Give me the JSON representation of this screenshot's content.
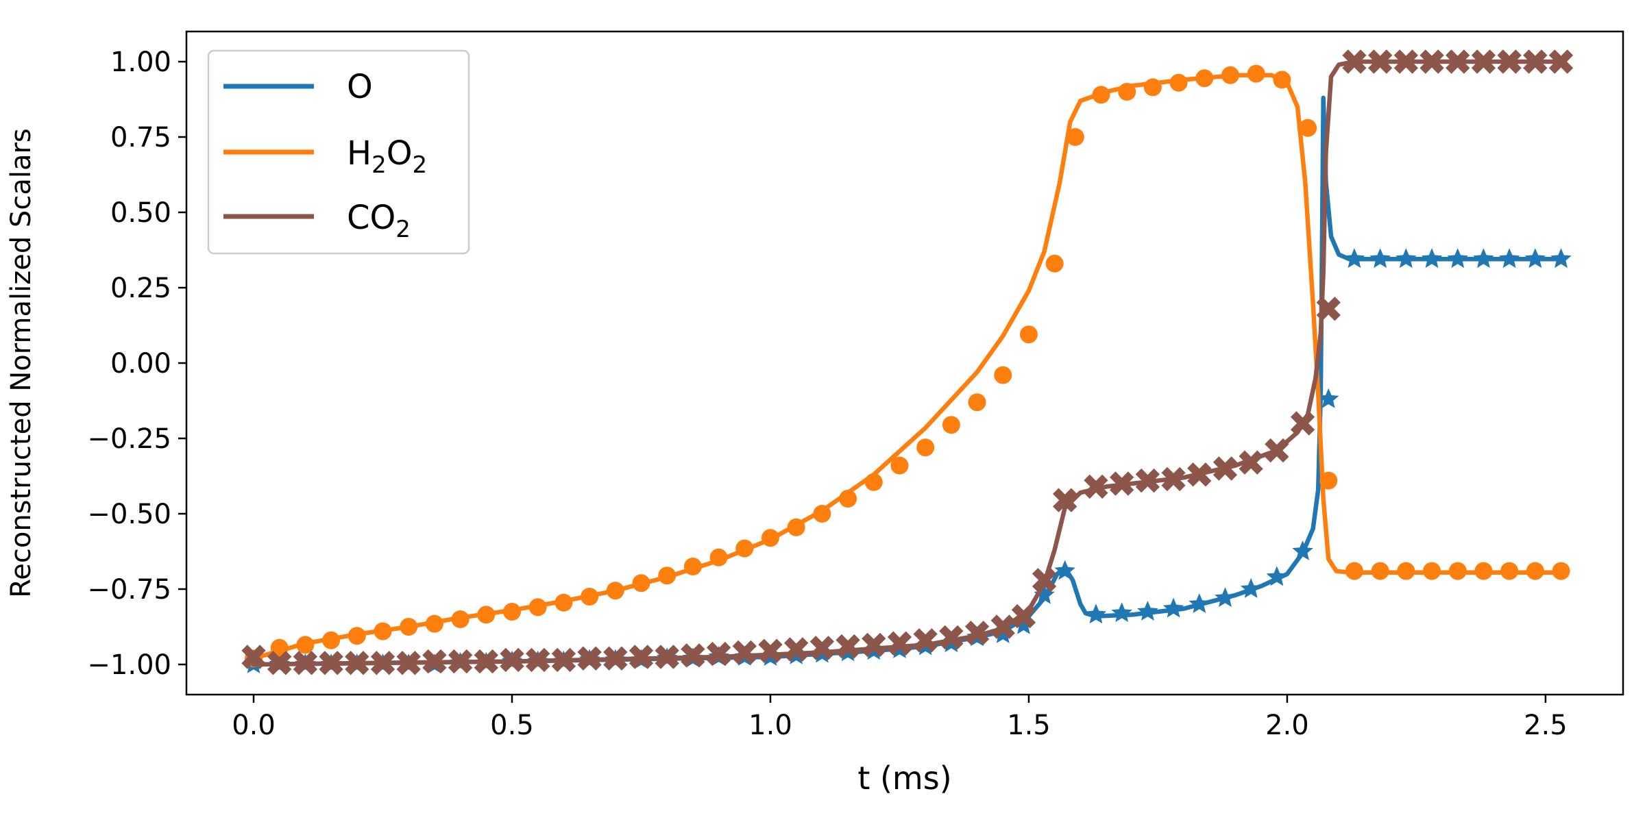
{
  "chart_data": {
    "type": "line",
    "title": "",
    "xlabel": "t (ms)",
    "ylabel": "Reconstructed Normalized Scalars",
    "xlim": [
      -0.13,
      2.65
    ],
    "ylim": [
      -1.1,
      1.1
    ],
    "xticks": [
      0.0,
      0.5,
      1.0,
      1.5,
      2.0,
      2.5
    ],
    "xtick_labels": [
      "0.0",
      "0.5",
      "1.0",
      "1.5",
      "2.0",
      "2.5"
    ],
    "yticks": [
      1.0,
      0.75,
      0.5,
      0.25,
      0.0,
      -0.25,
      -0.5,
      -0.75,
      -1.0
    ],
    "ytick_labels": [
      "1.00",
      "0.75",
      "0.50",
      "0.25",
      "0.00",
      "−0.25",
      "−0.50",
      "−0.75",
      "−1.00"
    ],
    "grid": false,
    "legend_location": "upper-left",
    "series": [
      {
        "name": "O",
        "legend_main": "O",
        "color": "#1f77b4",
        "marker": "star",
        "line": [
          [
            0,
            -1.0
          ],
          [
            0.5,
            -0.99
          ],
          [
            1.0,
            -0.975
          ],
          [
            1.2,
            -0.955
          ],
          [
            1.3,
            -0.94
          ],
          [
            1.4,
            -0.91
          ],
          [
            1.45,
            -0.89
          ],
          [
            1.5,
            -0.84
          ],
          [
            1.53,
            -0.78
          ],
          [
            1.555,
            -0.7
          ],
          [
            1.57,
            -0.68
          ],
          [
            1.585,
            -0.72
          ],
          [
            1.6,
            -0.8
          ],
          [
            1.61,
            -0.83
          ],
          [
            1.63,
            -0.84
          ],
          [
            1.7,
            -0.835
          ],
          [
            1.8,
            -0.815
          ],
          [
            1.9,
            -0.77
          ],
          [
            1.95,
            -0.74
          ],
          [
            2.0,
            -0.7
          ],
          [
            2.03,
            -0.63
          ],
          [
            2.05,
            -0.55
          ],
          [
            2.06,
            -0.42
          ],
          [
            2.065,
            -0.1
          ],
          [
            2.07,
            0.88
          ],
          [
            2.075,
            0.6
          ],
          [
            2.085,
            0.42
          ],
          [
            2.1,
            0.36
          ],
          [
            2.12,
            0.345
          ],
          [
            2.2,
            0.345
          ],
          [
            2.53,
            0.345
          ]
        ],
        "markers": [
          [
            0,
            -1.0
          ],
          [
            0.05,
            -1.0
          ],
          [
            0.1,
            -1.0
          ],
          [
            0.15,
            -1.0
          ],
          [
            0.2,
            -1.0
          ],
          [
            0.25,
            -1.0
          ],
          [
            0.3,
            -1.0
          ],
          [
            0.35,
            -1.0
          ],
          [
            0.4,
            -0.995
          ],
          [
            0.45,
            -0.995
          ],
          [
            0.5,
            -0.99
          ],
          [
            0.55,
            -0.99
          ],
          [
            0.6,
            -0.99
          ],
          [
            0.65,
            -0.985
          ],
          [
            0.7,
            -0.985
          ],
          [
            0.75,
            -0.985
          ],
          [
            0.8,
            -0.98
          ],
          [
            0.85,
            -0.98
          ],
          [
            0.9,
            -0.975
          ],
          [
            0.95,
            -0.975
          ],
          [
            1.0,
            -0.975
          ],
          [
            1.05,
            -0.97
          ],
          [
            1.1,
            -0.965
          ],
          [
            1.15,
            -0.96
          ],
          [
            1.2,
            -0.955
          ],
          [
            1.25,
            -0.95
          ],
          [
            1.3,
            -0.94
          ],
          [
            1.35,
            -0.93
          ],
          [
            1.4,
            -0.91
          ],
          [
            1.45,
            -0.9
          ],
          [
            1.49,
            -0.87
          ],
          [
            1.53,
            -0.77
          ],
          [
            1.57,
            -0.69
          ],
          [
            1.63,
            -0.835
          ],
          [
            1.68,
            -0.83
          ],
          [
            1.73,
            -0.825
          ],
          [
            1.78,
            -0.815
          ],
          [
            1.83,
            -0.8
          ],
          [
            1.88,
            -0.78
          ],
          [
            1.93,
            -0.75
          ],
          [
            1.98,
            -0.71
          ],
          [
            2.03,
            -0.625
          ],
          [
            2.08,
            -0.12
          ],
          [
            2.13,
            0.345
          ],
          [
            2.18,
            0.345
          ],
          [
            2.23,
            0.345
          ],
          [
            2.28,
            0.345
          ],
          [
            2.33,
            0.345
          ],
          [
            2.38,
            0.345
          ],
          [
            2.43,
            0.345
          ],
          [
            2.48,
            0.345
          ],
          [
            2.53,
            0.345
          ]
        ]
      },
      {
        "name": "H2O2",
        "legend_main": "H",
        "legend_sub1": "2",
        "legend_mid": "O",
        "legend_sub2": "2",
        "color": "#ff7f0e",
        "marker": "circle",
        "line": [
          [
            0,
            -0.98
          ],
          [
            0.1,
            -0.93
          ],
          [
            0.2,
            -0.9
          ],
          [
            0.3,
            -0.875
          ],
          [
            0.4,
            -0.845
          ],
          [
            0.5,
            -0.82
          ],
          [
            0.6,
            -0.79
          ],
          [
            0.7,
            -0.755
          ],
          [
            0.8,
            -0.71
          ],
          [
            0.9,
            -0.655
          ],
          [
            1.0,
            -0.585
          ],
          [
            1.1,
            -0.49
          ],
          [
            1.2,
            -0.37
          ],
          [
            1.3,
            -0.215
          ],
          [
            1.4,
            -0.03
          ],
          [
            1.45,
            0.09
          ],
          [
            1.5,
            0.24
          ],
          [
            1.53,
            0.37
          ],
          [
            1.56,
            0.6
          ],
          [
            1.58,
            0.8
          ],
          [
            1.6,
            0.87
          ],
          [
            1.65,
            0.9
          ],
          [
            1.7,
            0.92
          ],
          [
            1.8,
            0.94
          ],
          [
            1.9,
            0.955
          ],
          [
            1.97,
            0.955
          ],
          [
            2.0,
            0.93
          ],
          [
            2.02,
            0.85
          ],
          [
            2.035,
            0.6
          ],
          [
            2.05,
            0.2
          ],
          [
            2.06,
            -0.1
          ],
          [
            2.07,
            -0.45
          ],
          [
            2.08,
            -0.65
          ],
          [
            2.095,
            -0.69
          ],
          [
            2.12,
            -0.695
          ],
          [
            2.53,
            -0.695
          ]
        ],
        "markers": [
          [
            0,
            -0.98
          ],
          [
            0.05,
            -0.945
          ],
          [
            0.1,
            -0.935
          ],
          [
            0.15,
            -0.92
          ],
          [
            0.2,
            -0.905
          ],
          [
            0.25,
            -0.89
          ],
          [
            0.3,
            -0.875
          ],
          [
            0.35,
            -0.865
          ],
          [
            0.4,
            -0.85
          ],
          [
            0.45,
            -0.835
          ],
          [
            0.5,
            -0.825
          ],
          [
            0.55,
            -0.81
          ],
          [
            0.6,
            -0.795
          ],
          [
            0.65,
            -0.775
          ],
          [
            0.7,
            -0.755
          ],
          [
            0.75,
            -0.73
          ],
          [
            0.8,
            -0.705
          ],
          [
            0.85,
            -0.675
          ],
          [
            0.9,
            -0.645
          ],
          [
            0.95,
            -0.615
          ],
          [
            1.0,
            -0.58
          ],
          [
            1.05,
            -0.545
          ],
          [
            1.1,
            -0.5
          ],
          [
            1.15,
            -0.45
          ],
          [
            1.2,
            -0.395
          ],
          [
            1.25,
            -0.34
          ],
          [
            1.3,
            -0.28
          ],
          [
            1.35,
            -0.205
          ],
          [
            1.4,
            -0.13
          ],
          [
            1.45,
            -0.04
          ],
          [
            1.5,
            0.095
          ],
          [
            1.55,
            0.33
          ],
          [
            1.59,
            0.75
          ],
          [
            1.64,
            0.89
          ],
          [
            1.69,
            0.9
          ],
          [
            1.74,
            0.915
          ],
          [
            1.79,
            0.93
          ],
          [
            1.84,
            0.945
          ],
          [
            1.89,
            0.955
          ],
          [
            1.94,
            0.96
          ],
          [
            1.99,
            0.94
          ],
          [
            2.04,
            0.78
          ],
          [
            2.08,
            -0.39
          ],
          [
            2.13,
            -0.69
          ],
          [
            2.18,
            -0.69
          ],
          [
            2.23,
            -0.69
          ],
          [
            2.28,
            -0.69
          ],
          [
            2.33,
            -0.69
          ],
          [
            2.38,
            -0.69
          ],
          [
            2.43,
            -0.69
          ],
          [
            2.48,
            -0.69
          ],
          [
            2.53,
            -0.69
          ]
        ]
      },
      {
        "name": "CO2",
        "legend_main": "CO",
        "legend_sub1": "2",
        "color": "#8c564b",
        "marker": "x",
        "line": [
          [
            0,
            -1.0
          ],
          [
            0.5,
            -0.99
          ],
          [
            0.9,
            -0.975
          ],
          [
            1.1,
            -0.96
          ],
          [
            1.3,
            -0.935
          ],
          [
            1.4,
            -0.905
          ],
          [
            1.45,
            -0.88
          ],
          [
            1.5,
            -0.82
          ],
          [
            1.53,
            -0.73
          ],
          [
            1.55,
            -0.62
          ],
          [
            1.57,
            -0.48
          ],
          [
            1.6,
            -0.43
          ],
          [
            1.65,
            -0.41
          ],
          [
            1.7,
            -0.4
          ],
          [
            1.8,
            -0.38
          ],
          [
            1.9,
            -0.34
          ],
          [
            1.98,
            -0.29
          ],
          [
            2.02,
            -0.23
          ],
          [
            2.04,
            -0.17
          ],
          [
            2.055,
            -0.05
          ],
          [
            2.065,
            0.1
          ],
          [
            2.07,
            0.3
          ],
          [
            2.075,
            0.7
          ],
          [
            2.085,
            0.95
          ],
          [
            2.1,
            0.99
          ],
          [
            2.13,
            1.0
          ],
          [
            2.53,
            1.0
          ]
        ],
        "markers": [
          [
            0,
            -0.975
          ],
          [
            0.05,
            -0.995
          ],
          [
            0.1,
            -0.995
          ],
          [
            0.15,
            -0.995
          ],
          [
            0.2,
            -0.995
          ],
          [
            0.25,
            -0.995
          ],
          [
            0.3,
            -0.995
          ],
          [
            0.35,
            -0.99
          ],
          [
            0.4,
            -0.99
          ],
          [
            0.45,
            -0.99
          ],
          [
            0.5,
            -0.985
          ],
          [
            0.55,
            -0.985
          ],
          [
            0.6,
            -0.985
          ],
          [
            0.65,
            -0.98
          ],
          [
            0.7,
            -0.98
          ],
          [
            0.75,
            -0.975
          ],
          [
            0.8,
            -0.975
          ],
          [
            0.85,
            -0.97
          ],
          [
            0.9,
            -0.965
          ],
          [
            0.95,
            -0.96
          ],
          [
            1.0,
            -0.955
          ],
          [
            1.05,
            -0.95
          ],
          [
            1.1,
            -0.945
          ],
          [
            1.15,
            -0.94
          ],
          [
            1.2,
            -0.935
          ],
          [
            1.25,
            -0.93
          ],
          [
            1.3,
            -0.92
          ],
          [
            1.35,
            -0.91
          ],
          [
            1.4,
            -0.895
          ],
          [
            1.45,
            -0.875
          ],
          [
            1.49,
            -0.84
          ],
          [
            1.53,
            -0.72
          ],
          [
            1.57,
            -0.455
          ],
          [
            1.63,
            -0.41
          ],
          [
            1.68,
            -0.4
          ],
          [
            1.73,
            -0.39
          ],
          [
            1.78,
            -0.385
          ],
          [
            1.83,
            -0.37
          ],
          [
            1.88,
            -0.35
          ],
          [
            1.93,
            -0.33
          ],
          [
            1.98,
            -0.29
          ],
          [
            2.03,
            -0.2
          ],
          [
            2.08,
            0.18
          ],
          [
            2.13,
            1.0
          ],
          [
            2.18,
            1.0
          ],
          [
            2.23,
            1.0
          ],
          [
            2.28,
            1.0
          ],
          [
            2.33,
            1.0
          ],
          [
            2.38,
            1.0
          ],
          [
            2.43,
            1.0
          ],
          [
            2.48,
            1.0
          ],
          [
            2.53,
            1.0
          ]
        ]
      }
    ]
  }
}
